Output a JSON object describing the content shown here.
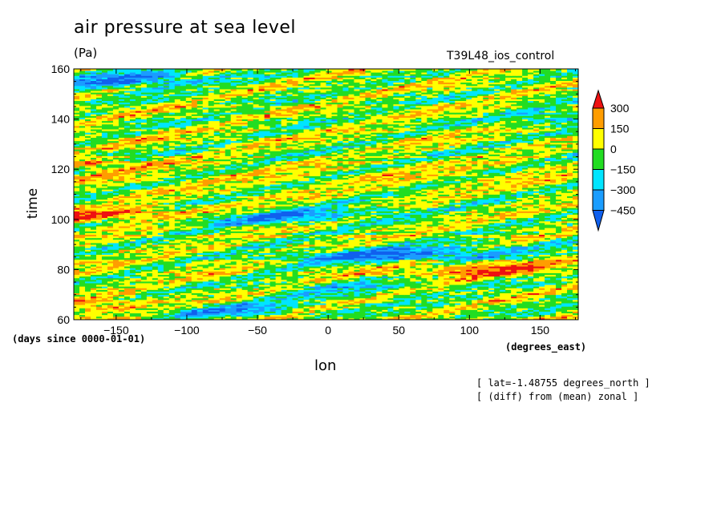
{
  "chart_data": {
    "type": "heatmap",
    "title": "air pressure at sea level",
    "units": "(Pa)",
    "run_label": "T39L48_ios_control",
    "xlabel": "lon",
    "ylabel": "time",
    "xunits": "(degrees_east)",
    "yunits": "(days since 0000-01-01)",
    "xlim": [
      -180,
      177
    ],
    "ylim": [
      60,
      160
    ],
    "xticks": [
      -150,
      -100,
      -50,
      0,
      50,
      100,
      150
    ],
    "yticks": [
      60,
      80,
      100,
      120,
      140,
      160
    ],
    "notes": [
      "[ lat=-1.48755 degrees_north ]",
      "[ (diff) from (mean) zonal ]"
    ],
    "colorbar": {
      "levels": [
        300,
        150,
        0,
        -150,
        -300,
        -450
      ],
      "colors": [
        "#ee1111",
        "#ff9d00",
        "#ffff00",
        "#22dd22",
        "#00e5ff",
        "#1a9dff",
        "#1060ee"
      ],
      "extend": "both"
    },
    "features": [
      {
        "x": -170,
        "y": 101.5,
        "dx": 75,
        "dy": 3,
        "value": 330
      },
      {
        "x": -25,
        "y": 101.5,
        "dx": 70,
        "dy": 2.5,
        "value": -420
      },
      {
        "x": 50,
        "y": 86,
        "dx": 85,
        "dy": 3,
        "value": -480
      },
      {
        "x": -160,
        "y": 65,
        "dx": 65,
        "dy": 3,
        "value": 290
      },
      {
        "x": -140,
        "y": 155.5,
        "dx": 55,
        "dy": 3.5,
        "value": -450
      },
      {
        "x": 110,
        "y": 80,
        "dx": 60,
        "dy": 3,
        "value": 240
      },
      {
        "x": -80,
        "y": 64,
        "dx": 55,
        "dy": 3,
        "value": -330
      },
      {
        "x": 160,
        "y": 141,
        "dx": 35,
        "dy": 3,
        "value": -260
      },
      {
        "x": 10,
        "y": 72,
        "dx": 55,
        "dy": 3,
        "value": -200
      },
      {
        "x": -170,
        "y": 122,
        "dx": 40,
        "dy": 2.5,
        "value": 210
      }
    ]
  }
}
